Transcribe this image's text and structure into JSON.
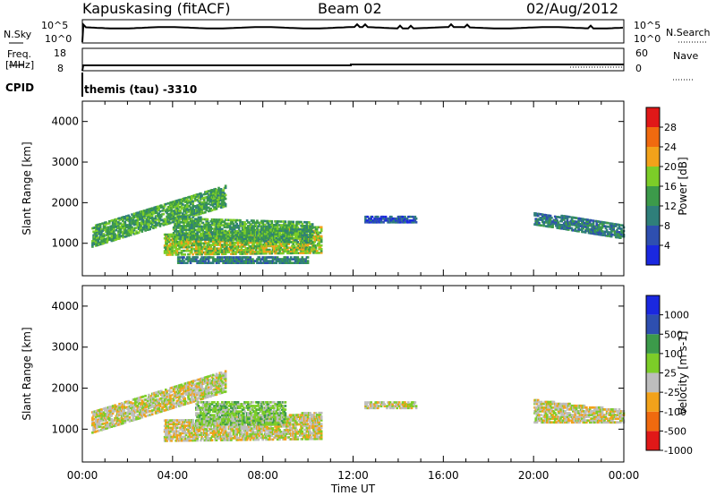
{
  "header": {
    "station": "Kapuskasing (fitACF)",
    "beam": "Beam 02",
    "date": "02/Aug/2012"
  },
  "params": {
    "nsky_label": "N.Sky",
    "nsky_ticks": [
      "10^5",
      "10^0"
    ],
    "nsearch_label": "N.Search",
    "freq_label_1": "Freq.",
    "freq_label_2": "[MHz]",
    "freq_ticks": [
      "18",
      "8"
    ],
    "nave_label": "Nave",
    "nave_ticks": [
      "60",
      "0"
    ],
    "cpid_label": "CPID",
    "cpid_value": "themis (tau) -3310"
  },
  "chart_data": [
    {
      "type": "heatmap",
      "ylabel": "Slant Range [km]",
      "xlabel": "Time UT",
      "xlim": [
        0,
        24
      ],
      "ylim": [
        200,
        4500
      ],
      "yticks": [
        1000,
        2000,
        3000,
        4000
      ],
      "xtick_labels": [
        "00:00",
        "04:00",
        "08:00",
        "12:00",
        "16:00",
        "20:00",
        "00:00"
      ],
      "colorbar": {
        "label": "Power [dB]",
        "ticks": [
          "4",
          "8",
          "12",
          "16",
          "20",
          "24",
          "28"
        ],
        "colors": [
          "#1a28e0",
          "#2e4fb0",
          "#2f7f7a",
          "#3c9a4a",
          "#7ccd28",
          "#f2a21a",
          "#f06a0f",
          "#e01818"
        ]
      },
      "regions": [
        {
          "t0": 0.4,
          "t1": 6.3,
          "r0": 900,
          "r1": 1400,
          "r0e": 1900,
          "r1e": 2400,
          "level": 3
        },
        {
          "t0": 3.6,
          "t1": 10.6,
          "r0": 700,
          "r1": 1200,
          "r0e": 750,
          "r1e": 1400,
          "level": 4
        },
        {
          "t0": 4.0,
          "t1": 10.2,
          "r0": 1100,
          "r1": 1650,
          "r0e": 1000,
          "r1e": 1500,
          "level": 3
        },
        {
          "t0": 4.2,
          "t1": 10.0,
          "r0": 500,
          "r1": 650,
          "r0e": 500,
          "r1e": 650,
          "level": 2
        },
        {
          "t0": 12.5,
          "t1": 14.8,
          "r0": 1500,
          "r1": 1650,
          "r0e": 1500,
          "r1e": 1650,
          "level": 1
        },
        {
          "t0": 20.0,
          "t1": 24.0,
          "r0": 1450,
          "r1": 1750,
          "r0e": 1100,
          "r1e": 1450,
          "level": 2
        }
      ]
    },
    {
      "type": "heatmap",
      "ylabel": "Slant Range [km]",
      "xlabel": "Time UT",
      "xlim": [
        0,
        24
      ],
      "ylim": [
        200,
        4500
      ],
      "yticks": [
        1000,
        2000,
        3000,
        4000
      ],
      "xtick_labels": [
        "00:00",
        "04:00",
        "08:00",
        "12:00",
        "16:00",
        "20:00",
        "00:00"
      ],
      "colorbar": {
        "label": "Velocity [m s-1]",
        "ticks": [
          "1000",
          "500",
          "100",
          "25",
          "-25",
          "-100",
          "-500",
          "-1000"
        ],
        "colors": [
          "#1a28e0",
          "#2e4fb0",
          "#3c9a4a",
          "#7ccd28",
          "#bdbdbd",
          "#f2a21a",
          "#f06a0f",
          "#e01818"
        ]
      },
      "regions": [
        {
          "t0": 0.4,
          "t1": 6.3,
          "r0": 900,
          "r1": 1400,
          "r0e": 1900,
          "r1e": 2400,
          "level": 4
        },
        {
          "t0": 3.6,
          "t1": 10.6,
          "r0": 700,
          "r1": 1200,
          "r0e": 750,
          "r1e": 1400,
          "level": 4
        },
        {
          "t0": 5.0,
          "t1": 9.0,
          "r0": 1100,
          "r1": 1650,
          "r0e": 1100,
          "r1e": 1650,
          "level": 3
        },
        {
          "t0": 12.5,
          "t1": 14.8,
          "r0": 1500,
          "r1": 1650,
          "r0e": 1500,
          "r1e": 1650,
          "level": 4
        },
        {
          "t0": 20.0,
          "t1": 24.0,
          "r0": 1150,
          "r1": 1700,
          "r0e": 1150,
          "r1e": 1450,
          "level": 4
        }
      ]
    }
  ]
}
